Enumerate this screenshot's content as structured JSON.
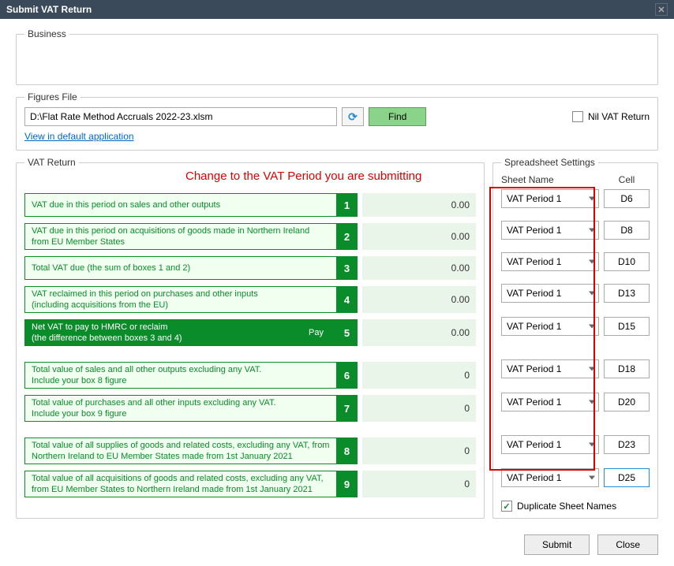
{
  "window": {
    "title": "Submit VAT Return"
  },
  "business": {
    "legend": "Business"
  },
  "figures": {
    "legend": "Figures File",
    "file_path": "D:\\Flat Rate Method Accruals 2022-23.xlsm",
    "find_label": "Find",
    "nil_label": "Nil VAT Return",
    "link_label": "View in default application"
  },
  "annotation": "Change to the VAT Period you are submitting",
  "vat": {
    "legend": "VAT Return",
    "rows": [
      {
        "n": "1",
        "line1": "VAT due in this period on sales and other outputs",
        "line2": "",
        "value": "0.00",
        "filled": false
      },
      {
        "n": "2",
        "line1": "VAT due in this period on acquisitions of goods made in Northern Ireland",
        "line2": "from EU Member States",
        "value": "0.00",
        "filled": false
      },
      {
        "n": "3",
        "line1": "Total VAT due (the sum of boxes 1 and 2)",
        "line2": "",
        "value": "0.00",
        "filled": false
      },
      {
        "n": "4",
        "line1": "VAT reclaimed in this period on purchases and other inputs",
        "line2": "(including acquisitions from the EU)",
        "value": "0.00",
        "filled": false
      },
      {
        "n": "5",
        "line1": "Net VAT to pay to HMRC or reclaim",
        "line2": "(the difference between boxes 3 and 4)",
        "value": "0.00",
        "filled": true,
        "pay": "Pay"
      },
      {
        "n": "6",
        "line1": "Total value of sales and all other outputs excluding any VAT.",
        "line2": "Include your box 8 figure",
        "value": "0",
        "filled": false
      },
      {
        "n": "7",
        "line1": "Total value of purchases and all other inputs excluding any VAT.",
        "line2": "Include your box 9 figure",
        "value": "0",
        "filled": false
      },
      {
        "n": "8",
        "line1": "Total value of all supplies of goods and related costs, excluding any VAT, from",
        "line2": "Northern Ireland to EU Member States made from 1st January 2021",
        "value": "0",
        "filled": false
      },
      {
        "n": "9",
        "line1": "Total value of all acquisitions of goods and related costs, excluding any VAT,",
        "line2": "from EU Member States to Northern Ireland made from 1st January 2021",
        "value": "0",
        "filled": false
      }
    ]
  },
  "spreadsheet": {
    "legend": "Spreadsheet Settings",
    "sheet_header": "Sheet Name",
    "cell_header": "Cell",
    "duplicate_label": "Duplicate Sheet Names",
    "duplicate_checked": true,
    "rows": [
      {
        "sheet": "VAT Period 1",
        "cell": "D6"
      },
      {
        "sheet": "VAT Period 1",
        "cell": "D8"
      },
      {
        "sheet": "VAT Period 1",
        "cell": "D10"
      },
      {
        "sheet": "VAT Period 1",
        "cell": "D13"
      },
      {
        "sheet": "VAT Period 1",
        "cell": "D15"
      },
      {
        "sheet": "VAT Period 1",
        "cell": "D18"
      },
      {
        "sheet": "VAT Period 1",
        "cell": "D20"
      },
      {
        "sheet": "VAT Period 1",
        "cell": "D23"
      },
      {
        "sheet": "VAT Period 1",
        "cell": "D25"
      }
    ]
  },
  "footer": {
    "submit": "Submit",
    "close": "Close"
  },
  "colors": {
    "green": "#0a8c2a",
    "red": "#d00000",
    "light_green": "#e8f5e8",
    "border_green": "#0a8c2a"
  }
}
